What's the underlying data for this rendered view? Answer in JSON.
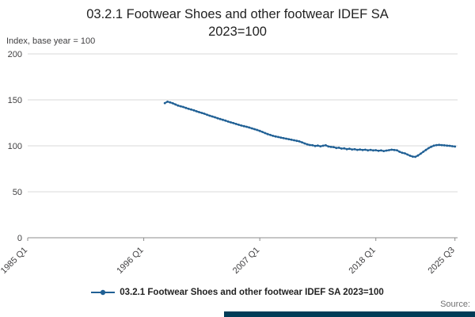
{
  "header": {
    "title": "03.2.1 Footwear Shoes and other footwear IDEF SA 2023=100",
    "unit_label": "Index, base year = 100"
  },
  "legend": {
    "label": "03.2.1 Footwear Shoes and other footwear IDEF SA 2023=100"
  },
  "footer": {
    "source_label": "Source:"
  },
  "colors": {
    "accent": "#206095",
    "grid": "#d9d9d9",
    "axis": "#8c8c8c",
    "text": "#414042",
    "footer_bar": "#003c57"
  },
  "chart_data": {
    "type": "line",
    "title": "03.2.1 Footwear Shoes and other footwear IDEF SA 2023=100",
    "xlabel": "",
    "ylabel": "Index, base year = 100",
    "xlim": [
      1985.0,
      2025.75
    ],
    "ylim": [
      0,
      200
    ],
    "grid": "horizontal",
    "legend_position": "bottom",
    "y_ticks": [
      0,
      50,
      100,
      150,
      200
    ],
    "x_ticks": [
      {
        "label": "1985 Q1",
        "t": 1985.0
      },
      {
        "label": "1996 Q1",
        "t": 1996.0
      },
      {
        "label": "2007 Q1",
        "t": 2007.0
      },
      {
        "label": "2018 Q1",
        "t": 2018.0
      },
      {
        "label": "2025 Q3",
        "t": 2025.5
      }
    ],
    "series": [
      {
        "name": "03.2.1 Footwear Shoes and other footwear IDEF SA 2023=100",
        "color": "#206095",
        "start_period": "1998 Q1",
        "period_step": "quarter",
        "start_t": 1998.0,
        "values": [
          146.5,
          148.0,
          147.2,
          146.3,
          145.0,
          143.8,
          143.0,
          142.2,
          141.2,
          140.3,
          139.5,
          138.6,
          137.6,
          136.6,
          135.8,
          134.9,
          133.8,
          132.8,
          131.9,
          131.0,
          130.0,
          129.1,
          128.3,
          127.4,
          126.4,
          125.5,
          124.7,
          123.8,
          122.9,
          122.1,
          121.4,
          120.7,
          119.9,
          119.0,
          118.1,
          117.2,
          116.2,
          115.1,
          113.9,
          112.8,
          111.8,
          110.9,
          110.2,
          109.6,
          109.0,
          108.4,
          107.8,
          107.2,
          106.6,
          106.0,
          105.4,
          104.8,
          103.8,
          102.6,
          101.6,
          100.9,
          100.6,
          99.8,
          100.3,
          99.5,
          100.1,
          100.6,
          99.3,
          98.8,
          98.6,
          97.7,
          97.9,
          97.0,
          97.2,
          96.4,
          96.8,
          96.0,
          96.3,
          95.6,
          96.0,
          95.4,
          95.8,
          95.1,
          95.6,
          95.0,
          95.3,
          94.6,
          95.0,
          94.3,
          94.8,
          95.3,
          95.8,
          95.4,
          95.2,
          93.5,
          92.4,
          91.8,
          90.5,
          89.2,
          88.3,
          88.0,
          89.5,
          91.5,
          93.5,
          95.5,
          97.5,
          99.0,
          100.2,
          100.8,
          101.0,
          100.8,
          100.5,
          100.2,
          100.0,
          99.6,
          99.2
        ]
      }
    ]
  }
}
